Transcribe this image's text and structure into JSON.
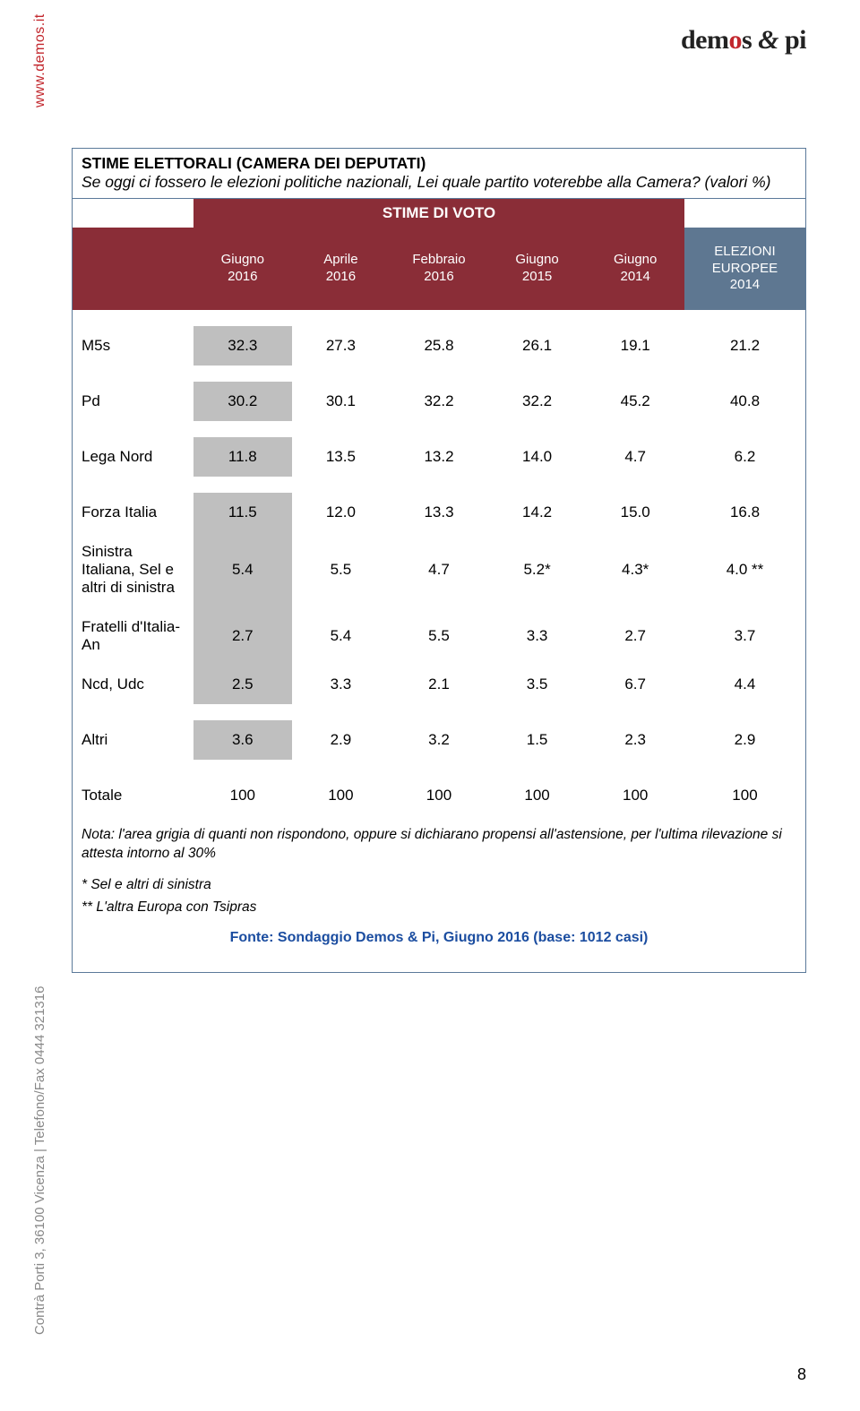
{
  "logo_text": "demos & pi",
  "side_url": "www.demos.it",
  "side_contact": "Contrà Porti 3, 36100 Vicenza | Telefono/Fax 0444 321316",
  "page_number": "8",
  "title_bold": "STIME ELETTORALI (CAMERA DEI DEPUTATI)",
  "title_ital": "Se oggi ci fossero le elezioni politiche nazionali, Lei quale partito voterebbe alla Camera? (valori %)",
  "stime_label": "STIME DI VOTO",
  "columns": [
    {
      "l1": "Giugno",
      "l2": "2016"
    },
    {
      "l1": "Aprile",
      "l2": "2016"
    },
    {
      "l1": "Febbraio",
      "l2": "2016"
    },
    {
      "l1": "Giugno",
      "l2": "2015"
    },
    {
      "l1": "Giugno",
      "l2": "2014"
    }
  ],
  "last_col": {
    "l1": "ELEZIONI",
    "l2": "EUROPEE",
    "l3": "2014"
  },
  "rows": [
    {
      "label": "M5s",
      "v": [
        "32.3",
        "27.3",
        "25.8",
        "26.1",
        "19.1",
        "21.2"
      ],
      "grey": true
    },
    {
      "label": "Pd",
      "v": [
        "30.2",
        "30.1",
        "32.2",
        "32.2",
        "45.2",
        "40.8"
      ],
      "grey": true
    },
    {
      "label": "Lega Nord",
      "v": [
        "11.8",
        "13.5",
        "13.2",
        "14.0",
        "4.7",
        "6.2"
      ],
      "grey": true
    },
    {
      "label": "Forza Italia",
      "v": [
        "11.5",
        "12.0",
        "13.3",
        "14.2",
        "15.0",
        "16.8"
      ],
      "grey": true
    },
    {
      "label": "Sinistra Italiana, Sel e altri di sinistra",
      "v": [
        "5.4",
        "5.5",
        "4.7",
        "5.2*",
        "4.3*",
        "4.0 **"
      ],
      "grey": true
    },
    {
      "label": "Fratelli d'Italia-An",
      "v": [
        "2.7",
        "5.4",
        "5.5",
        "3.3",
        "2.7",
        "3.7"
      ],
      "grey": true
    },
    {
      "label": "Ncd, Udc",
      "v": [
        "2.5",
        "3.3",
        "2.1",
        "3.5",
        "6.7",
        "4.4"
      ],
      "grey": true
    },
    {
      "label": "Altri",
      "v": [
        "3.6",
        "2.9",
        "3.2",
        "1.5",
        "2.3",
        "2.9"
      ],
      "grey": true
    },
    {
      "label": "Totale",
      "v": [
        "100",
        "100",
        "100",
        "100",
        "100",
        "100"
      ],
      "grey": false
    }
  ],
  "note1": "Nota: l'area grigia di quanti non rispondono, oppure si dichiarano propensi all'astensione, per l'ultima rilevazione si attesta intorno al 30%",
  "note2": "* Sel e altri di sinistra",
  "note3": "** L'altra Europa con Tsipras",
  "fonte": "Fonte: Sondaggio Demos & Pi, Giugno 2016 (base: 1012 casi)",
  "colors": {
    "maroon": "#8a2d37",
    "slate": "#5e7791",
    "grey": "#bfbfbf",
    "border": "#5b7a9a",
    "link": "#1b4da0",
    "red": "#c2272d"
  }
}
